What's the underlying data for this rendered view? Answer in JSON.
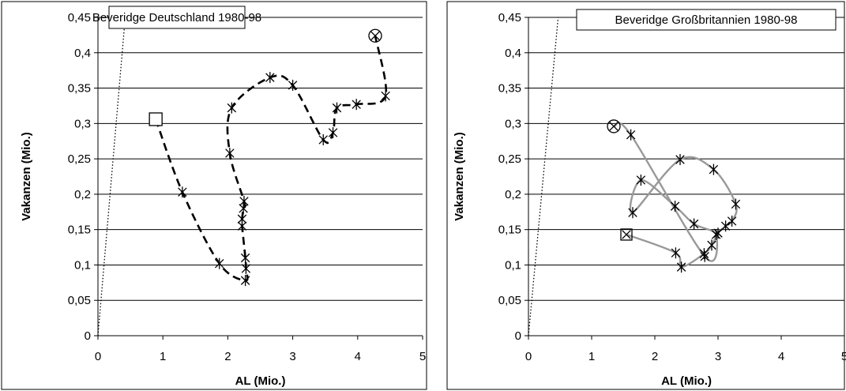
{
  "chart_data": [
    {
      "type": "scatter",
      "title": "Beveridge Deutschland 1980-98",
      "xlabel": "AL (Mio.)",
      "ylabel": "Vakanzen (Mio.)",
      "xlim": [
        0,
        5
      ],
      "ylim": [
        0,
        0.45
      ],
      "x_ticks": [
        "0",
        "1",
        "2",
        "3",
        "4",
        "5"
      ],
      "y_ticks": [
        "0",
        "0,05",
        "0,1",
        "0,15",
        "0,2",
        "0,25",
        "0,3",
        "0,35",
        "0,4",
        "0,45"
      ],
      "grid": "horizontal",
      "line_style": "dashed",
      "line_color": "#000000",
      "series": [
        {
          "x": [
            0.89,
            1.3,
            1.87,
            2.27,
            2.28,
            2.27,
            2.22,
            2.22,
            2.24,
            2.25,
            2.03,
            2.06,
            2.65,
            3.0,
            3.47,
            3.62,
            3.68,
            3.98,
            4.43,
            4.27
          ],
          "y": [
            0.306,
            0.203,
            0.102,
            0.078,
            0.095,
            0.11,
            0.155,
            0.165,
            0.18,
            0.19,
            0.258,
            0.322,
            0.365,
            0.354,
            0.277,
            0.287,
            0.322,
            0.327,
            0.339,
            0.424
          ],
          "markers": [
            "square",
            "star",
            "star",
            "star",
            "star",
            "star",
            "star",
            "star",
            "star",
            "star",
            "star",
            "star",
            "star",
            "star",
            "star",
            "star",
            "star",
            "star",
            "star",
            "circle-cross"
          ]
        }
      ],
      "reference_line": {
        "style": "dotted",
        "x": [
          0,
          0.42
        ],
        "y": [
          0,
          0.45
        ]
      }
    },
    {
      "type": "scatter",
      "title": "Beveridge Großbritannien 1980-98",
      "xlabel": "AL (Mio.)",
      "ylabel": "Vakanzen (Mio.)",
      "xlim": [
        0,
        5
      ],
      "ylim": [
        0,
        0.45
      ],
      "x_ticks": [
        "0",
        "1",
        "2",
        "3",
        "4",
        "5"
      ],
      "y_ticks": [
        "0",
        "0,05",
        "0,1",
        "0,15",
        "0,2",
        "0,25",
        "0,3",
        "0,35",
        "0,4",
        "0,45"
      ],
      "grid": "horizontal",
      "line_style": "solid",
      "line_color": "#999999",
      "series": [
        {
          "x": [
            1.55,
            2.33,
            2.42,
            2.78,
            2.9,
            3.0,
            3.12,
            3.22,
            3.28,
            2.93,
            2.4,
            1.65,
            1.78,
            2.32,
            2.62,
            2.97,
            2.79,
            1.62,
            1.35
          ],
          "y": [
            0.143,
            0.117,
            0.097,
            0.116,
            0.128,
            0.145,
            0.155,
            0.162,
            0.186,
            0.235,
            0.249,
            0.174,
            0.22,
            0.183,
            0.158,
            0.143,
            0.112,
            0.284,
            0.296
          ],
          "markers": [
            "square-cross",
            "star",
            "star",
            "star",
            "star",
            "star",
            "star",
            "star",
            "star",
            "star",
            "star",
            "star",
            "star",
            "star",
            "star",
            "star",
            "star",
            "star",
            "circle-cross"
          ]
        }
      ],
      "reference_line": {
        "style": "dotted",
        "x": [
          0,
          0.47
        ],
        "y": [
          0,
          0.45
        ]
      }
    }
  ]
}
